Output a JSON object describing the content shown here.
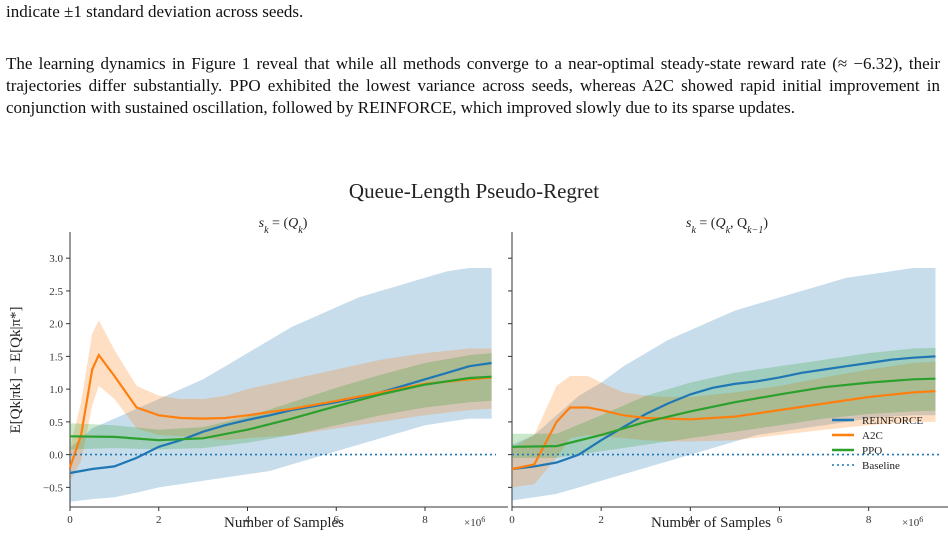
{
  "text_page": {
    "caption_tail": "indicate ±1 standard deviation across seeds.",
    "paragraph": "The learning dynamics in Figure 1 reveal that while all methods converge to a near-optimal steady-state reward rate (≈ −6.32), their trajectories differ substantially. PPO exhibited the lowest variance across seeds, whereas A2C showed rapid initial improvement in conjunction with sustained oscillation, followed by REINFORCE, which improved slowly due to its sparse updates."
  },
  "colors": {
    "reinforce": "#1f77b4",
    "a2c": "#ff7f0e",
    "ppo": "#2ca02c",
    "baseline": "#1f77b4"
  },
  "chart_data": {
    "title": "Queue-Length Pseudo-Regret",
    "type": "line",
    "legend_placement": "bottom-right of right panel",
    "panels": [
      {
        "subtitle": "s_k = (Q_k)",
        "subtitle_main": "s",
        "subtitle_sub": "k",
        "subtitle_rhs_main": "Q",
        "subtitle_rhs_sub": "k",
        "subtitle_rhs_extra": "",
        "xlabel": "Number of Samples",
        "ylabel": "E[Q_k|π_k] − E[Q_k|π*]",
        "ylabel_plain": "E[Qk|πk] − E[Qk|π*]",
        "x_scale_label": "×10^6",
        "x_scale_main": "×10",
        "x_scale_sup": "6",
        "xlim": [
          0,
          9.6
        ],
        "ylim": [
          -0.8,
          3.4
        ],
        "xticks": [
          "0",
          "2",
          "4",
          "6",
          "8"
        ],
        "yticks": [
          "−0.5",
          "0.0",
          "0.5",
          "1.0",
          "1.5",
          "2.0",
          "2.5",
          "3.0"
        ],
        "series": [
          {
            "name": "REINFORCE",
            "x": [
              0,
              0.5,
              1.0,
              1.5,
              2.0,
              2.5,
              3.0,
              3.5,
              4.0,
              4.5,
              5.0,
              5.5,
              6.0,
              6.5,
              7.0,
              7.5,
              8.0,
              8.5,
              9.0,
              9.5
            ],
            "y": [
              -0.28,
              -0.22,
              -0.18,
              -0.05,
              0.12,
              0.22,
              0.35,
              0.45,
              0.53,
              0.6,
              0.68,
              0.74,
              0.8,
              0.87,
              0.95,
              1.05,
              1.15,
              1.25,
              1.35,
              1.4
            ],
            "lower": [
              -0.72,
              -0.68,
              -0.65,
              -0.58,
              -0.5,
              -0.45,
              -0.4,
              -0.35,
              -0.3,
              -0.25,
              -0.15,
              -0.05,
              0.05,
              0.15,
              0.25,
              0.35,
              0.45,
              0.5,
              0.55,
              0.55
            ],
            "upper": [
              0.1,
              0.4,
              0.55,
              0.7,
              0.85,
              1.0,
              1.15,
              1.35,
              1.55,
              1.75,
              1.95,
              2.1,
              2.25,
              2.4,
              2.5,
              2.6,
              2.7,
              2.8,
              2.85,
              2.85
            ]
          },
          {
            "name": "A2C",
            "x": [
              0,
              0.25,
              0.5,
              0.65,
              1.0,
              1.5,
              2.0,
              2.5,
              3.0,
              3.5,
              4.0,
              5.0,
              6.0,
              7.0,
              8.0,
              9.0,
              9.5
            ],
            "y": [
              -0.2,
              0.3,
              1.3,
              1.52,
              1.2,
              0.72,
              0.6,
              0.56,
              0.55,
              0.56,
              0.6,
              0.7,
              0.82,
              0.95,
              1.08,
              1.15,
              1.18
            ],
            "lower": [
              -0.4,
              -0.1,
              0.75,
              1.05,
              0.85,
              0.4,
              0.3,
              0.28,
              0.25,
              0.22,
              0.25,
              0.3,
              0.4,
              0.5,
              0.6,
              0.68,
              0.7
            ],
            "upper": [
              0.1,
              0.8,
              1.85,
              2.05,
              1.6,
              1.05,
              0.9,
              0.85,
              0.85,
              0.9,
              1.0,
              1.15,
              1.3,
              1.45,
              1.55,
              1.62,
              1.62
            ]
          },
          {
            "name": "PPO",
            "x": [
              0,
              1.0,
              2.0,
              3.0,
              4.0,
              5.0,
              6.0,
              7.0,
              8.0,
              9.0,
              9.5
            ],
            "y": [
              0.28,
              0.27,
              0.22,
              0.25,
              0.38,
              0.55,
              0.74,
              0.92,
              1.07,
              1.17,
              1.19
            ],
            "lower": [
              0.08,
              0.1,
              0.08,
              0.1,
              0.18,
              0.3,
              0.45,
              0.6,
              0.72,
              0.8,
              0.82
            ],
            "upper": [
              0.48,
              0.45,
              0.38,
              0.42,
              0.58,
              0.8,
              1.02,
              1.22,
              1.4,
              1.52,
              1.55
            ]
          },
          {
            "name": "Baseline",
            "x": [
              0,
              9.6
            ],
            "y": [
              0,
              0
            ]
          }
        ]
      },
      {
        "subtitle": "s_k = (Q_k, Q_{k−1})",
        "subtitle_main": "s",
        "subtitle_sub": "k",
        "subtitle_rhs_main": "Q",
        "subtitle_rhs_sub": "k",
        "subtitle_rhs_extra": ", Q",
        "subtitle_rhs_extra_sub": "k−1",
        "xlabel": "Number of Samples",
        "x_scale_label": "×10^6",
        "x_scale_main": "×10",
        "x_scale_sup": "6",
        "xlim": [
          0,
          9.6
        ],
        "ylim": [
          -0.8,
          3.4
        ],
        "xticks": [
          "0",
          "2",
          "4",
          "6",
          "8"
        ],
        "series": [
          {
            "name": "REINFORCE",
            "x": [
              0,
              0.5,
              1.0,
              1.5,
              2.0,
              2.5,
              3.0,
              3.5,
              4.0,
              4.5,
              5.0,
              5.5,
              6.0,
              6.5,
              7.0,
              7.5,
              8.0,
              8.5,
              9.0,
              9.5
            ],
            "y": [
              -0.22,
              -0.18,
              -0.12,
              0.0,
              0.22,
              0.42,
              0.62,
              0.78,
              0.92,
              1.02,
              1.08,
              1.12,
              1.18,
              1.25,
              1.3,
              1.35,
              1.4,
              1.45,
              1.48,
              1.5
            ],
            "lower": [
              -0.7,
              -0.65,
              -0.6,
              -0.5,
              -0.4,
              -0.3,
              -0.2,
              -0.1,
              0.0,
              0.1,
              0.2,
              0.3,
              0.35,
              0.4,
              0.45,
              0.5,
              0.55,
              0.58,
              0.6,
              0.6
            ],
            "upper": [
              0.15,
              0.3,
              0.6,
              0.9,
              1.1,
              1.35,
              1.55,
              1.75,
              1.9,
              2.05,
              2.2,
              2.3,
              2.4,
              2.5,
              2.6,
              2.7,
              2.75,
              2.8,
              2.85,
              2.85
            ]
          },
          {
            "name": "A2C",
            "x": [
              0,
              0.5,
              1.0,
              1.3,
              1.7,
              2.0,
              2.5,
              3.0,
              3.5,
              4.0,
              5.0,
              6.0,
              7.0,
              8.0,
              9.0,
              9.5
            ],
            "y": [
              -0.22,
              -0.15,
              0.5,
              0.72,
              0.72,
              0.68,
              0.6,
              0.56,
              0.55,
              0.54,
              0.58,
              0.68,
              0.78,
              0.88,
              0.95,
              0.97
            ],
            "lower": [
              -0.5,
              -0.45,
              -0.05,
              0.25,
              0.3,
              0.28,
              0.25,
              0.22,
              0.2,
              0.2,
              0.22,
              0.3,
              0.38,
              0.45,
              0.5,
              0.5
            ],
            "upper": [
              0.1,
              0.3,
              1.05,
              1.2,
              1.2,
              1.1,
              0.95,
              0.9,
              0.88,
              0.88,
              0.95,
              1.05,
              1.18,
              1.3,
              1.4,
              1.42
            ]
          },
          {
            "name": "PPO",
            "x": [
              0,
              1.0,
              2.0,
              3.0,
              4.0,
              5.0,
              6.0,
              7.0,
              8.0,
              9.0,
              9.5
            ],
            "y": [
              0.12,
              0.13,
              0.3,
              0.5,
              0.66,
              0.8,
              0.92,
              1.03,
              1.1,
              1.15,
              1.16
            ],
            "lower": [
              -0.05,
              -0.05,
              0.05,
              0.15,
              0.25,
              0.35,
              0.45,
              0.55,
              0.62,
              0.66,
              0.67
            ],
            "upper": [
              0.32,
              0.32,
              0.6,
              0.9,
              1.1,
              1.25,
              1.35,
              1.45,
              1.55,
              1.62,
              1.63
            ]
          },
          {
            "name": "Baseline",
            "x": [
              0,
              9.6
            ],
            "y": [
              0,
              0
            ]
          }
        ]
      }
    ],
    "legend": [
      "REINFORCE",
      "A2C",
      "PPO",
      "Baseline"
    ]
  }
}
